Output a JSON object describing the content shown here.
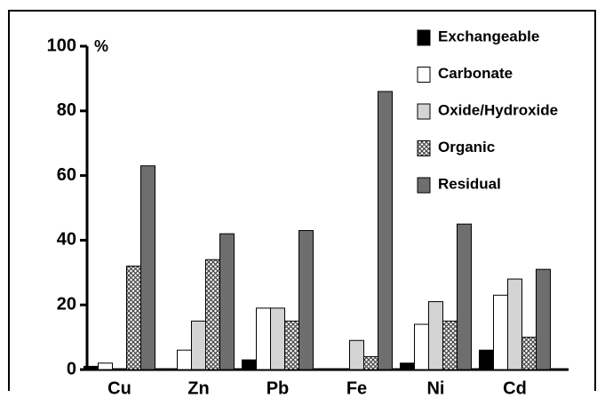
{
  "chart_data": {
    "type": "bar",
    "y_label": "%",
    "categories": [
      "Cu",
      "Zn",
      "Pb",
      "Fe",
      "Ni",
      "Cd"
    ],
    "series": [
      {
        "name": "Exchangeable",
        "color": "#000000",
        "values": [
          1,
          0,
          3,
          0,
          2,
          6
        ]
      },
      {
        "name": "Carbonate",
        "color": "#ffffff",
        "values": [
          2,
          6,
          19,
          0,
          14,
          23
        ]
      },
      {
        "name": "Oxide/Hydroxide",
        "color": "#d4d4d4",
        "values": [
          0,
          15,
          19,
          9,
          21,
          28
        ]
      },
      {
        "name": "Organic",
        "color": "#444444",
        "pattern": "crosshatch",
        "values": [
          32,
          34,
          15,
          4,
          15,
          10
        ]
      },
      {
        "name": "Residual",
        "color": "#6e6e6e",
        "values": [
          63,
          42,
          43,
          86,
          45,
          31
        ]
      }
    ],
    "ylim": [
      0,
      100
    ],
    "yticks": [
      0,
      20,
      40,
      60,
      80,
      100
    ],
    "grid": false,
    "legend": "top-right"
  }
}
